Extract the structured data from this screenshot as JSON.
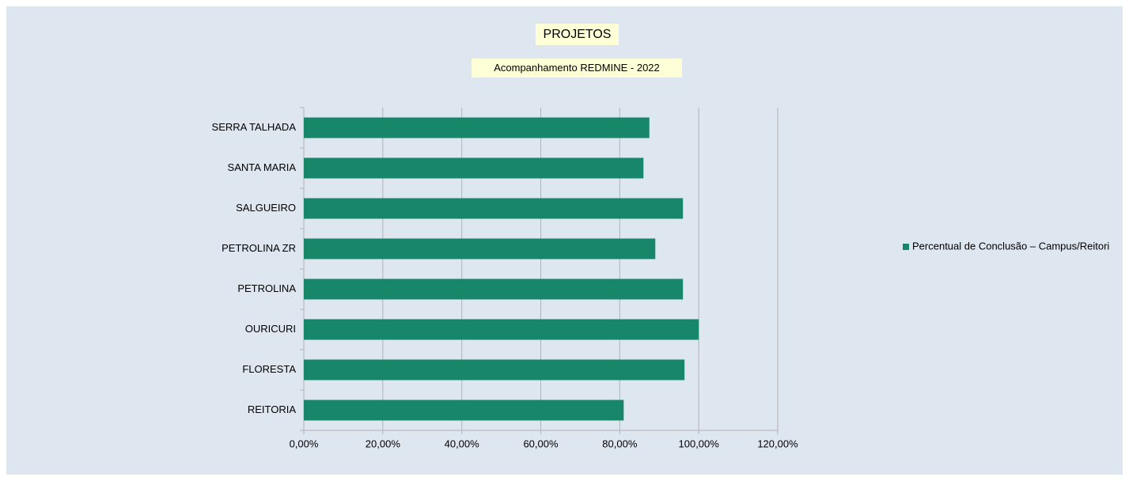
{
  "chart_data": {
    "type": "barh",
    "title": "PROJETOS",
    "subtitle": "Acompanhamento REDMINE - 2022",
    "categories": [
      "REITORIA",
      "FLORESTA",
      "OURICURI",
      "PETROLINA",
      "PETROLINA ZR",
      "SALGUEIRO",
      "SANTA MARIA",
      "SERRA TALHADA"
    ],
    "series": [
      {
        "name": "Percentual de Conclusão – Campus/Reitori",
        "color": "#188669",
        "values": [
          81,
          96.4,
          100,
          96,
          89,
          96,
          86,
          87.5
        ]
      }
    ],
    "xlim": [
      0,
      120
    ],
    "xticks": [
      {
        "value": 0,
        "label": "0,00%"
      },
      {
        "value": 20,
        "label": "20,00%"
      },
      {
        "value": 40,
        "label": "40,00%"
      },
      {
        "value": 60,
        "label": "60,00%"
      },
      {
        "value": 80,
        "label": "80,00%"
      },
      {
        "value": 100,
        "label": "100,00%"
      },
      {
        "value": 120,
        "label": "120,00%"
      }
    ],
    "grid": true,
    "legend": "right"
  }
}
